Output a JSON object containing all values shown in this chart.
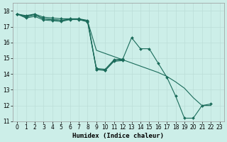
{
  "xlabel": "Humidex (Indice chaleur)",
  "bg_color": "#cceee8",
  "grid_color": "#bbddd8",
  "line_color": "#1a6b5a",
  "xlim": [
    -0.5,
    23.5
  ],
  "ylim": [
    11,
    18.5
  ],
  "yticks": [
    11,
    12,
    13,
    14,
    15,
    16,
    17,
    18
  ],
  "xticks": [
    0,
    1,
    2,
    3,
    4,
    5,
    6,
    7,
    8,
    9,
    10,
    11,
    12,
    13,
    14,
    15,
    16,
    17,
    18,
    19,
    20,
    21,
    22,
    23
  ],
  "series": [
    {
      "x": [
        0,
        1,
        2,
        3,
        4,
        5,
        6,
        7,
        8,
        9,
        10,
        11,
        12,
        13,
        14,
        15,
        16,
        17,
        18,
        19,
        20,
        21,
        22
      ],
      "y": [
        17.8,
        17.7,
        17.8,
        17.6,
        17.55,
        17.5,
        17.5,
        17.5,
        17.4,
        14.35,
        14.3,
        14.9,
        14.95,
        16.3,
        15.6,
        15.6,
        14.7,
        13.8,
        12.6,
        11.2,
        11.2,
        12.0,
        12.1
      ],
      "marker": true
    },
    {
      "x": [
        0,
        1,
        2,
        3,
        4,
        5,
        6,
        7,
        8,
        9,
        10,
        11,
        12,
        13,
        14,
        15,
        16,
        17,
        18,
        19,
        20,
        21,
        22
      ],
      "y": [
        17.8,
        17.65,
        17.75,
        17.5,
        17.45,
        17.4,
        17.45,
        17.45,
        17.35,
        15.5,
        15.3,
        15.1,
        14.9,
        14.7,
        14.5,
        14.3,
        14.1,
        13.85,
        13.5,
        13.1,
        12.5,
        12.0,
        12.0
      ],
      "marker": false
    },
    {
      "x": [
        0,
        1,
        2,
        3,
        4,
        5,
        6,
        7,
        8,
        9,
        10,
        11,
        12
      ],
      "y": [
        17.8,
        17.6,
        17.75,
        17.5,
        17.45,
        17.4,
        17.48,
        17.48,
        17.36,
        14.3,
        14.25,
        14.85,
        14.9
      ],
      "marker": true
    },
    {
      "x": [
        0,
        1,
        2,
        3,
        4,
        5,
        6,
        7,
        8,
        9,
        10,
        11,
        12
      ],
      "y": [
        17.8,
        17.55,
        17.65,
        17.42,
        17.38,
        17.32,
        17.45,
        17.45,
        17.3,
        14.28,
        14.22,
        14.8,
        14.85
      ],
      "marker": true
    }
  ]
}
